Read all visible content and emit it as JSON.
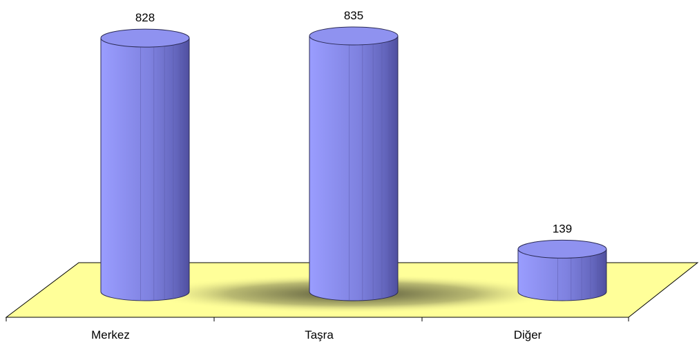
{
  "chart_data": {
    "type": "bar",
    "categories": [
      "Merkez",
      "Taşra",
      "Diğer"
    ],
    "values": [
      828,
      835,
      139
    ],
    "data_labels": [
      "828",
      "835",
      "139"
    ],
    "title": "",
    "xlabel": "",
    "ylabel": "",
    "ylim": [
      0,
      835
    ],
    "grid": false,
    "legend": "none",
    "bar_shape": "cylinder",
    "three_d": true
  },
  "colors": {
    "bar": "#8f92f0",
    "bar_dark": "#4f4f9f",
    "floor": "#ffff99",
    "floor_shadow": "#3a3a2a",
    "axis": "#000000"
  }
}
